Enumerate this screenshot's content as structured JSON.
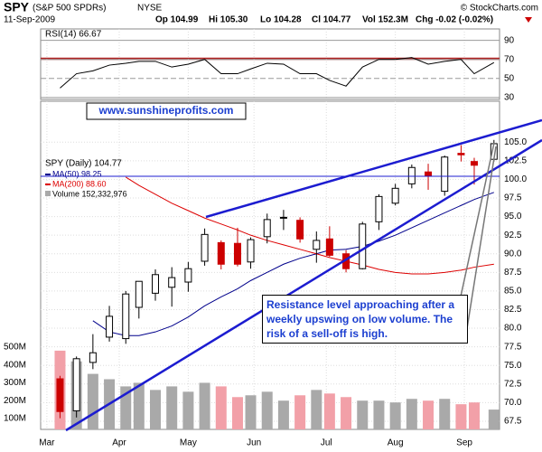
{
  "chart_data": {
    "type": "candlestick",
    "header": {
      "symbol": "SPY",
      "symbol_name": "(S&P 500 SPDRs)",
      "exchange": "NYSE",
      "date": "11-Sep-2009",
      "open": "Op 104.99",
      "high": "Hi 105.30",
      "low": "Lo 104.28",
      "close": "Cl 104.77",
      "volume": "Vol 152.3M",
      "change": "Chg -0.02 (-0.02%)",
      "source": "© StockCharts.com"
    },
    "watermark": "www.sunshineprofits.com",
    "annotation": "Resistance level approaching after a weekly upswing on low volume. The risk of a sell-off is high.",
    "name": "SPY (Daily) 104.77",
    "up_color": "#000000",
    "down_color": "#cc0000",
    "x": [
      4,
      9,
      14,
      19,
      24,
      28,
      33,
      38,
      43,
      48,
      53,
      58,
      62,
      67,
      72,
      77,
      82,
      86,
      91,
      96,
      101,
      106,
      111,
      116,
      121,
      126,
      130,
      136
    ],
    "open": [
      73.2,
      68.9,
      75.4,
      78.8,
      78.6,
      82.8,
      84.7,
      85.5,
      86.2,
      89.0,
      91.5,
      91.4,
      88.9,
      92.3,
      94.9,
      94.5,
      90.6,
      92.0,
      90.0,
      88.0,
      94.3,
      96.8,
      99.4,
      101.0,
      98.4,
      103.5,
      102.4,
      102.7
    ],
    "high": [
      73.6,
      76.2,
      79.2,
      83.0,
      85.0,
      86.3,
      87.9,
      88.2,
      88.9,
      93.4,
      91.8,
      93.5,
      92.2,
      95.4,
      95.9,
      94.9,
      93.0,
      93.7,
      90.5,
      94.3,
      98.0,
      99.4,
      102.0,
      102.1,
      103.2,
      104.6,
      102.9,
      105.3
    ],
    "low": [
      67.9,
      68.0,
      74.5,
      78.2,
      77.9,
      81.3,
      83.7,
      82.9,
      84.9,
      88.4,
      87.9,
      88.3,
      88.0,
      91.4,
      93.2,
      91.5,
      88.8,
      89.6,
      87.5,
      87.9,
      93.2,
      96.5,
      98.8,
      98.6,
      97.8,
      102.4,
      99.3,
      102.4
    ],
    "close": [
      68.8,
      75.9,
      76.7,
      81.6,
      84.6,
      86.3,
      87.2,
      86.8,
      88.0,
      92.6,
      88.6,
      88.6,
      91.9,
      94.6,
      94.9,
      92.0,
      91.8,
      89.8,
      88.0,
      94.0,
      97.7,
      98.8,
      101.6,
      100.5,
      103.0,
      103.3,
      101.9,
      104.8
    ],
    "volume_name": "Volume 152,332,976",
    "volume_up_color": "#a9a9a9",
    "volume_down_color": "#f2a0a8",
    "volume": [
      480,
      420,
      350,
      320,
      280,
      300,
      260,
      280,
      250,
      300,
      280,
      220,
      230,
      250,
      200,
      230,
      260,
      240,
      220,
      200,
      200,
      190,
      210,
      200,
      210,
      180,
      190,
      150
    ],
    "series": [
      {
        "name": "MA(50) 98.25",
        "color": "#00008b",
        "values": [
          null,
          null,
          81.0,
          79.5,
          79.0,
          79.0,
          79.5,
          80.3,
          81.5,
          83.0,
          84.2,
          85.3,
          86.4,
          87.5,
          88.6,
          89.4,
          90.0,
          90.5,
          90.6,
          91.0,
          91.7,
          92.5,
          93.5,
          94.5,
          95.5,
          96.5,
          97.3,
          98.25
        ]
      },
      {
        "name": "MA(200) 88.60",
        "color": "#dd0000",
        "values": [
          null,
          null,
          null,
          null,
          100.3,
          99.2,
          98.0,
          96.8,
          95.8,
          94.8,
          94.0,
          93.2,
          92.5,
          91.8,
          91.2,
          90.6,
          90.0,
          89.5,
          89.0,
          88.5,
          87.9,
          87.5,
          87.3,
          87.3,
          87.5,
          87.8,
          88.2,
          88.6
        ]
      }
    ],
    "xlim": [
      -1.9,
      137.7
    ],
    "xticks": [
      {
        "value": 0,
        "label": "Mar"
      },
      {
        "value": 22,
        "label": "Apr"
      },
      {
        "value": 43,
        "label": "May"
      },
      {
        "value": 63,
        "label": "Jun"
      },
      {
        "value": 85,
        "label": "Jul"
      },
      {
        "value": 106,
        "label": "Aug"
      },
      {
        "value": 127,
        "label": "Sep"
      }
    ],
    "ylim": [
      66.4,
      110.5
    ],
    "yticks": [
      67.5,
      {
        "value": 70,
        "label": "70.0"
      },
      72.5,
      {
        "value": 75,
        "label": "75.0"
      },
      77.5,
      {
        "value": 80,
        "label": "80.0"
      },
      82.5,
      {
        "value": 85,
        "label": "85.0"
      },
      87.5,
      {
        "value": 90,
        "label": "90.0"
      },
      92.5,
      {
        "value": 95,
        "label": "95.0"
      },
      97.5,
      {
        "value": 100,
        "label": "100.0"
      },
      102.5,
      {
        "value": 105,
        "label": "105.0"
      }
    ],
    "volume_ylim": [
      39,
      1877
    ],
    "volume_ticks": [
      {
        "value": 100,
        "label": "100M"
      },
      {
        "value": 200,
        "label": "200M"
      },
      {
        "value": 300,
        "label": "300M"
      },
      {
        "value": 400,
        "label": "400M"
      },
      {
        "value": 500,
        "label": "500M"
      }
    ],
    "rsi": {
      "name": "RSI(14) 66.67",
      "color": "#000000",
      "values": [
        40,
        55,
        58,
        64,
        66,
        68,
        68,
        62,
        65,
        70,
        55,
        55,
        60,
        66,
        65,
        55,
        55,
        48,
        42,
        62,
        70,
        70,
        72,
        65,
        68,
        70,
        55,
        66.67
      ],
      "ylim": [
        28,
        102
      ],
      "yticks": [
        30,
        50,
        70,
        90
      ]
    },
    "grid": true
  }
}
